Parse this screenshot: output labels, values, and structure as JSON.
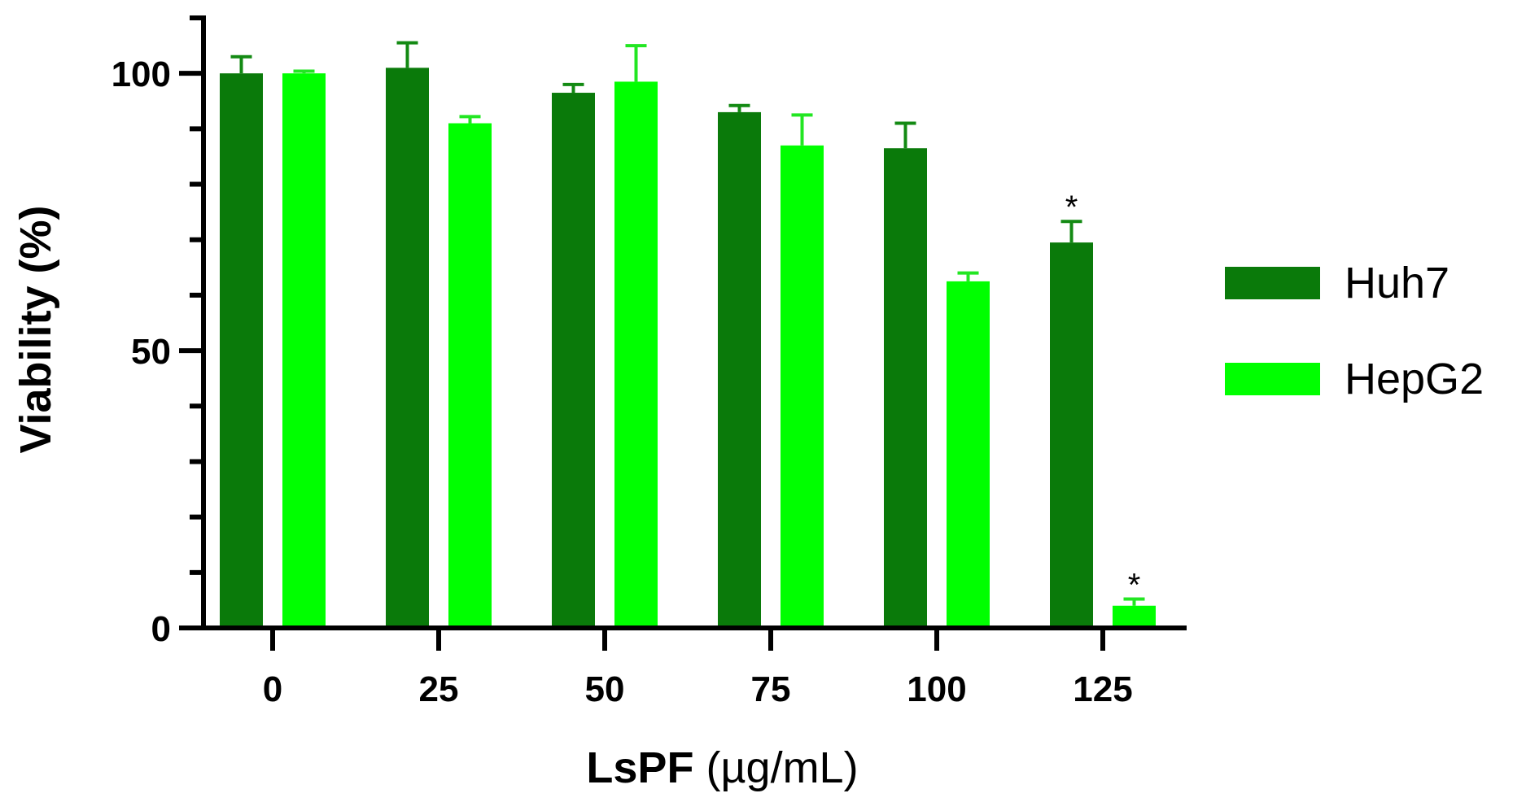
{
  "chart_data": {
    "type": "bar",
    "title": "",
    "xlabel": "LsPF",
    "xlabel_unit": "(µg/mL)",
    "ylabel": "Viability (%)",
    "ylim": [
      0,
      110
    ],
    "y_ticks": [
      0,
      50,
      100
    ],
    "y_minor_ticks": [
      10,
      20,
      30,
      40,
      60,
      70,
      80,
      90,
      110
    ],
    "categories": [
      "0",
      "25",
      "50",
      "75",
      "100",
      "125"
    ],
    "legend_position": "right",
    "series": [
      {
        "name": "Huh7",
        "color": "#0a7a0a",
        "errcolor": "#138a13",
        "values": [
          100,
          101,
          96.5,
          93,
          86.5,
          69.5
        ],
        "errors": [
          3,
          4.5,
          1.5,
          1.2,
          4.5,
          3.8
        ],
        "significance": [
          "",
          "",
          "",
          "",
          "",
          "*"
        ]
      },
      {
        "name": "HepG2",
        "color": "#00ff00",
        "errcolor": "#22e622",
        "values": [
          100,
          91,
          98.5,
          87,
          62.5,
          4
        ],
        "errors": [
          0.4,
          1.2,
          6.5,
          5.5,
          1.5,
          1.2
        ],
        "significance": [
          "",
          "",
          "",
          "",
          "",
          "*"
        ]
      }
    ]
  }
}
